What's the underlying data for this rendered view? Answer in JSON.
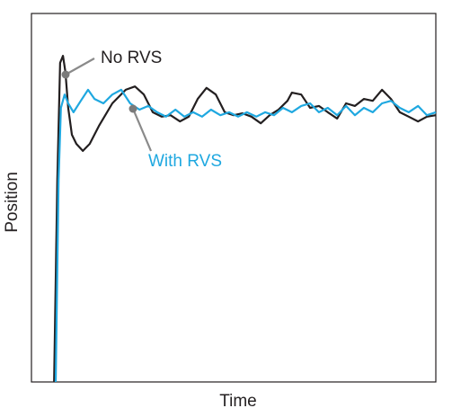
{
  "chart_data": {
    "type": "line",
    "x_label": "Time",
    "y_label": "Position",
    "xlim": [
      0,
      100
    ],
    "ylim": [
      0,
      100
    ],
    "grid": false,
    "series": [
      {
        "name": "No RVS",
        "color": "#231f20",
        "x": [
          5.6,
          6.4,
          7.1,
          7.8,
          8.4,
          9.1,
          10.0,
          11.1,
          12.7,
          14.4,
          16.7,
          20.0,
          23.3,
          25.6,
          27.8,
          30.0,
          32.2,
          34.4,
          36.7,
          38.9,
          41.1,
          43.3,
          45.6,
          47.8,
          50.0,
          52.2,
          54.4,
          56.7,
          58.9,
          61.1,
          63.3,
          64.4,
          66.7,
          68.9,
          71.1,
          73.3,
          75.6,
          77.8,
          80.0,
          82.2,
          84.4,
          86.7,
          88.9,
          91.1,
          93.3,
          95.6,
          97.8,
          100
        ],
        "values": [
          0,
          54.9,
          86.6,
          88.5,
          84.1,
          74.4,
          67.1,
          64.6,
          62.7,
          64.6,
          69.5,
          75.6,
          79.3,
          80.2,
          78.0,
          73.2,
          72.0,
          72.4,
          70.7,
          72.0,
          76.8,
          79.8,
          78.0,
          73.2,
          72.4,
          72.9,
          72.0,
          70.2,
          72.4,
          73.9,
          76.3,
          78.5,
          78.0,
          74.4,
          74.9,
          73.2,
          71.5,
          75.6,
          74.9,
          76.8,
          76.3,
          79.3,
          76.8,
          73.2,
          72.0,
          70.7,
          72.0,
          72.4
        ]
      },
      {
        "name": "With RVS",
        "color": "#1fa8e0",
        "x": [
          6.0,
          6.7,
          7.3,
          8.2,
          9.1,
          10.4,
          12.2,
          14.0,
          15.6,
          17.8,
          20.0,
          22.2,
          24.4,
          26.7,
          28.9,
          31.1,
          33.3,
          35.6,
          37.8,
          40.0,
          42.2,
          44.4,
          46.7,
          48.9,
          51.1,
          53.3,
          55.6,
          57.8,
          60.0,
          62.2,
          64.4,
          66.7,
          68.9,
          71.1,
          73.3,
          75.6,
          77.8,
          80.0,
          82.2,
          84.4,
          86.7,
          88.9,
          91.1,
          93.3,
          95.6,
          97.8,
          100
        ],
        "values": [
          0,
          54.9,
          74.4,
          78.0,
          75.6,
          73.2,
          76.3,
          79.3,
          76.8,
          75.6,
          78.0,
          79.3,
          75.6,
          73.9,
          74.9,
          73.2,
          72.0,
          73.9,
          72.0,
          73.2,
          72.0,
          73.9,
          72.4,
          73.2,
          72.0,
          73.2,
          72.0,
          73.2,
          72.4,
          74.4,
          73.2,
          74.9,
          75.6,
          73.2,
          74.4,
          72.4,
          74.9,
          72.4,
          74.4,
          73.2,
          75.6,
          76.3,
          74.4,
          73.2,
          74.9,
          72.4,
          73.2
        ]
      }
    ]
  }
}
